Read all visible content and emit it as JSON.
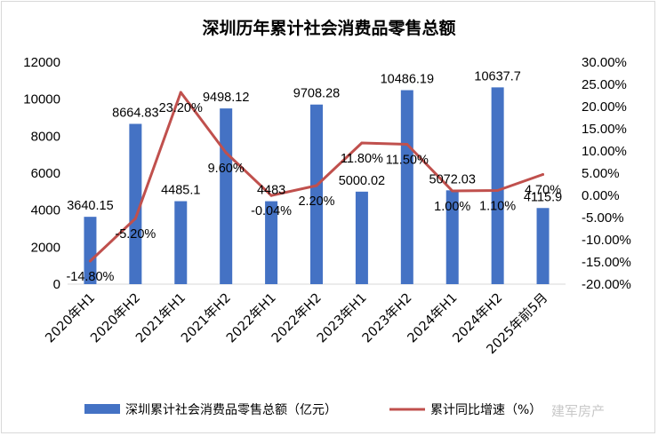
{
  "chart_data": {
    "type": "bar+line",
    "title": "深圳历年累计社会消费品零售总额",
    "categories": [
      "2020年H1",
      "2020年H2",
      "2021年H1",
      "2021年H2",
      "2022年H1",
      "2022年H2",
      "2023年H1",
      "2023年H2",
      "2024年H1",
      "2024年H2",
      "2025年前5月"
    ],
    "series": [
      {
        "name": "深圳累计社会消费品零售总额（亿元）",
        "type": "bar",
        "axis": "left",
        "color": "#4472c4",
        "values": [
          3640.15,
          8664.83,
          4485.1,
          9498.12,
          4483,
          9708.28,
          5000.02,
          10486.19,
          5072.03,
          10637.7,
          4115.9
        ],
        "labels": [
          "3640.15",
          "8664.83",
          "4485.1",
          "9498.12",
          "4483",
          "9708.28",
          "5000.02",
          "10486.19",
          "5072.03",
          "10637.7",
          "4115.9"
        ]
      },
      {
        "name": "累计同比增速（%）",
        "type": "line",
        "axis": "right",
        "color": "#c0504d",
        "values": [
          -14.8,
          -5.2,
          23.2,
          9.6,
          -0.04,
          2.2,
          11.8,
          11.5,
          1.0,
          1.1,
          4.7
        ],
        "labels": [
          "-14.80%",
          "-5.20%",
          "23.20%",
          "9.60%",
          "-0.04%",
          "2.20%",
          "11.80%",
          "11.50%",
          "1.00%",
          "1.10%",
          "4.70%"
        ]
      }
    ],
    "y_left": {
      "min": 0,
      "max": 12000,
      "step": 2000,
      "ticks": [
        "0",
        "2000",
        "4000",
        "6000",
        "8000",
        "10000",
        "12000"
      ]
    },
    "y_right": {
      "min": -20,
      "max": 30,
      "step": 5,
      "ticks": [
        "-20.00%",
        "-15.00%",
        "-10.00%",
        "-5.00%",
        "0.00%",
        "5.00%",
        "10.00%",
        "15.00%",
        "20.00%",
        "25.00%",
        "30.00%"
      ]
    },
    "grid": false,
    "legend_position": "bottom"
  },
  "watermark": "建军房产"
}
